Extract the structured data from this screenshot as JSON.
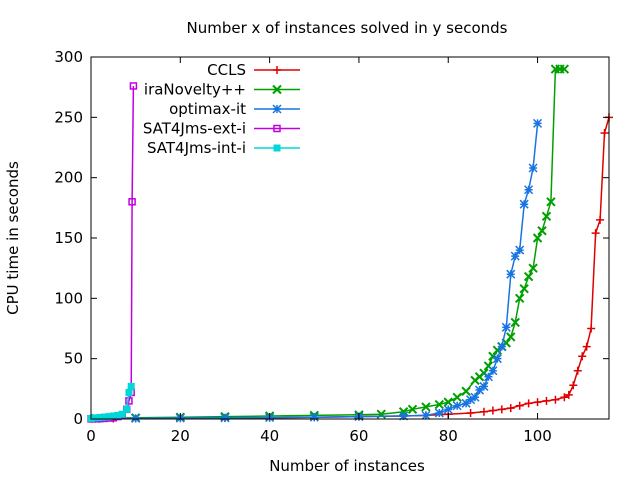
{
  "chart_data": {
    "type": "line",
    "title": "Number x of instances solved in y seconds",
    "xlabel": "Number of instances",
    "ylabel": "CPU time in seconds",
    "xlim": [
      0,
      116
    ],
    "ylim": [
      0,
      300
    ],
    "xticks": [
      "0",
      "20",
      "40",
      "60",
      "80",
      "100"
    ],
    "xtick_values": [
      0,
      20,
      40,
      60,
      80,
      100
    ],
    "yticks": [
      "0",
      "50",
      "100",
      "150",
      "200",
      "250",
      "300"
    ],
    "ytick_values": [
      0,
      50,
      100,
      150,
      200,
      250,
      300
    ],
    "grid": false,
    "legend": "top-left",
    "series": [
      {
        "name": "CCLS",
        "color": "#e00000",
        "marker": "plus",
        "x": [
          1,
          5,
          10,
          20,
          30,
          40,
          50,
          60,
          70,
          75,
          80,
          85,
          88,
          90,
          92,
          94,
          96,
          98,
          100,
          102,
          104,
          106,
          107,
          108,
          109,
          110,
          111,
          112,
          113,
          114,
          115,
          116
        ],
        "y": [
          0.3,
          0.4,
          0.5,
          0.6,
          0.8,
          1,
          1.5,
          2,
          2.5,
          3,
          4,
          5,
          6,
          7,
          8,
          9,
          11,
          13,
          14,
          15,
          16,
          18,
          20,
          28,
          40,
          52,
          60,
          75,
          154,
          165,
          237,
          250
        ]
      },
      {
        "name": "iraNovelty++",
        "color": "#00a000",
        "marker": "x",
        "x": [
          1,
          10,
          20,
          30,
          40,
          50,
          60,
          65,
          70,
          72,
          75,
          78,
          80,
          82,
          84,
          86,
          87,
          88,
          89,
          90,
          91,
          92,
          93,
          94,
          95,
          96,
          97,
          98,
          99,
          100,
          101,
          102,
          103,
          104,
          105,
          106
        ],
        "y": [
          0.5,
          1,
          1.5,
          2,
          2.5,
          3,
          3.5,
          4,
          6,
          8,
          10,
          12,
          14,
          18,
          23,
          32,
          35,
          38,
          44,
          52,
          57,
          60,
          63,
          68,
          80,
          100,
          108,
          118,
          125,
          150,
          156,
          168,
          180,
          290,
          290,
          290
        ]
      },
      {
        "name": "optimax-it",
        "color": "#1874e0",
        "marker": "star",
        "x": [
          1,
          10,
          20,
          30,
          40,
          50,
          60,
          70,
          75,
          78,
          80,
          82,
          84,
          85,
          86,
          87,
          88,
          89,
          90,
          91,
          92,
          93,
          94,
          95,
          96,
          97,
          98,
          99,
          100
        ],
        "y": [
          0.3,
          0.5,
          0.8,
          1,
          1.2,
          1.5,
          2,
          2.5,
          3,
          5,
          8,
          11,
          13,
          16,
          18,
          24,
          27,
          35,
          40,
          50,
          60,
          76,
          120,
          135,
          140,
          178,
          190,
          208,
          245
        ]
      },
      {
        "name": "SAT4Jms-ext-i",
        "color": "#c000e0",
        "marker": "square-open",
        "x": [
          0,
          1,
          2,
          3,
          4,
          5,
          6,
          7,
          8,
          8.5,
          9,
          9.2,
          9.5
        ],
        "y": [
          0.1,
          0.2,
          0.3,
          0.5,
          0.8,
          1,
          2,
          3,
          8,
          15,
          22,
          180,
          276
        ]
      },
      {
        "name": "SAT4Jms-int-i",
        "color": "#00d8d8",
        "marker": "square-filled",
        "x": [
          0,
          1,
          2,
          3,
          4,
          5,
          6,
          7,
          8,
          8.5,
          9
        ],
        "y": [
          0.5,
          1,
          1.3,
          1.6,
          2,
          2.5,
          3,
          4,
          8,
          22,
          27
        ]
      }
    ]
  }
}
